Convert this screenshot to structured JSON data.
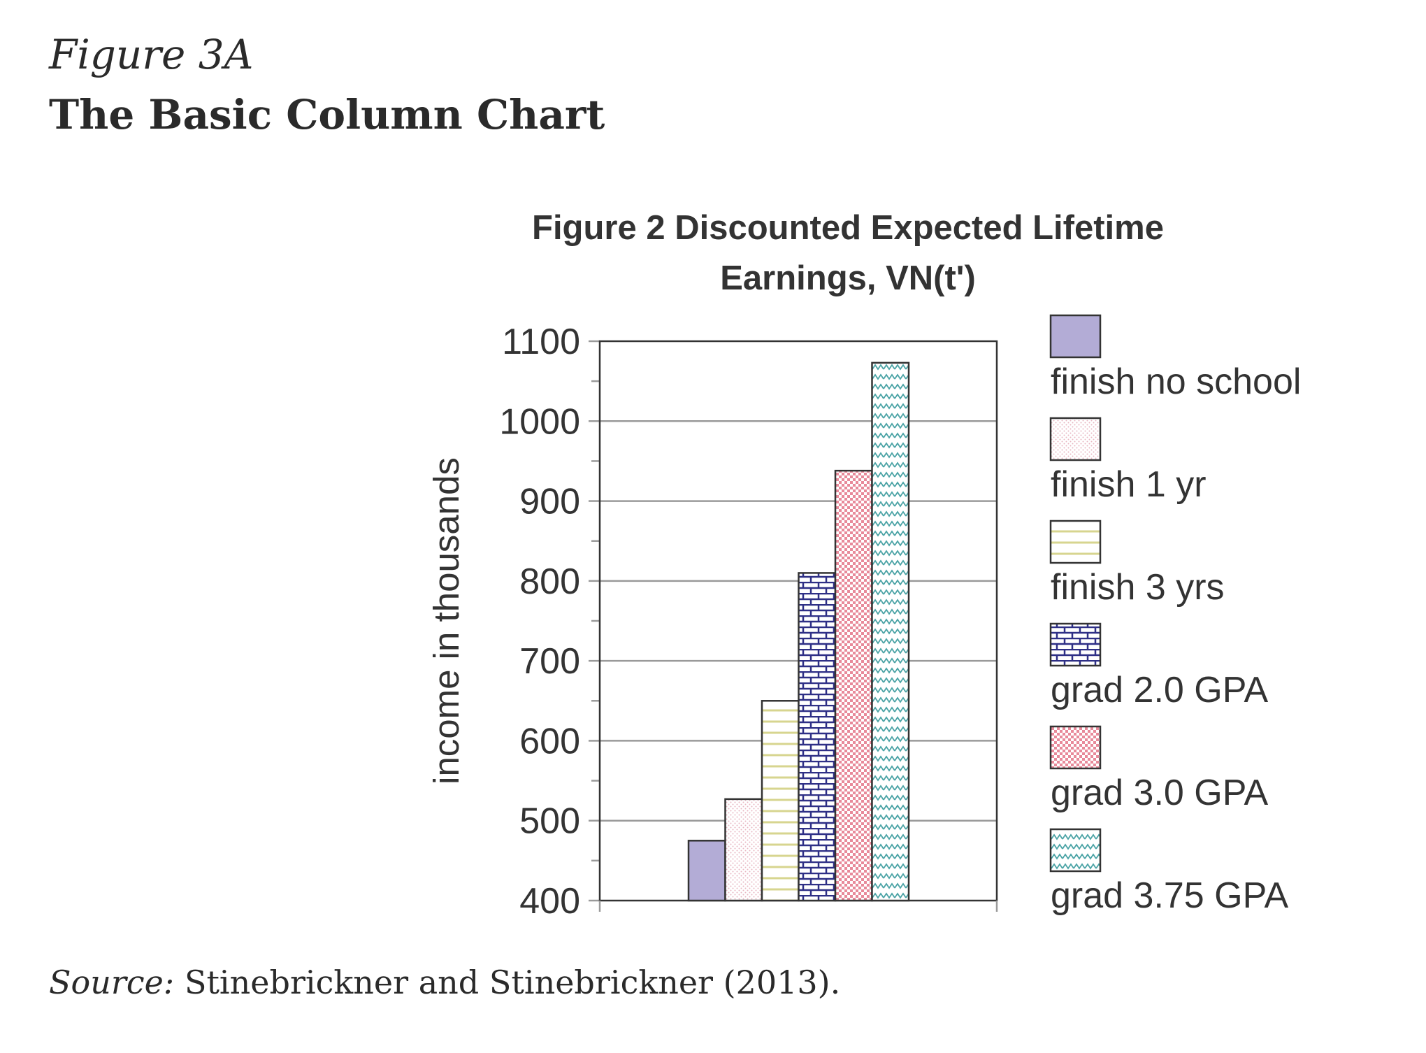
{
  "figure": {
    "label": "Figure 3A",
    "title": "The Basic Column Chart",
    "source_label": "Source:",
    "source_text": "Stinebrickner and Stinebrickner (2013)."
  },
  "chart_data": {
    "type": "bar",
    "title_lines": [
      "Figure 2 Discounted Expected Lifetime",
      "Earnings, VN(t')"
    ],
    "xlabel": "",
    "ylabel": "income in thousands",
    "ylim": [
      400,
      1100
    ],
    "yticks": [
      400,
      500,
      600,
      700,
      800,
      900,
      1000,
      1100
    ],
    "grid": true,
    "legend_position": "right",
    "series": [
      {
        "name": "finish no school",
        "value": 475,
        "color": "#b3acd6",
        "pattern": "solid"
      },
      {
        "name": "finish 1 yr",
        "value": 527,
        "color": "#e8b7c2",
        "pattern": "dots"
      },
      {
        "name": "finish 3 yrs",
        "value": 650,
        "color": "#d7d58f",
        "pattern": "horizontal-lines"
      },
      {
        "name": "grad 2.0 GPA",
        "value": 810,
        "color": "#2e2f86",
        "pattern": "bricks"
      },
      {
        "name": "grad 3.0 GPA",
        "value": 938,
        "color": "#e88a9a",
        "pattern": "checker"
      },
      {
        "name": "grad 3.75 GPA",
        "value": 1073,
        "color": "#4aa3a5",
        "pattern": "zigzag"
      }
    ]
  }
}
